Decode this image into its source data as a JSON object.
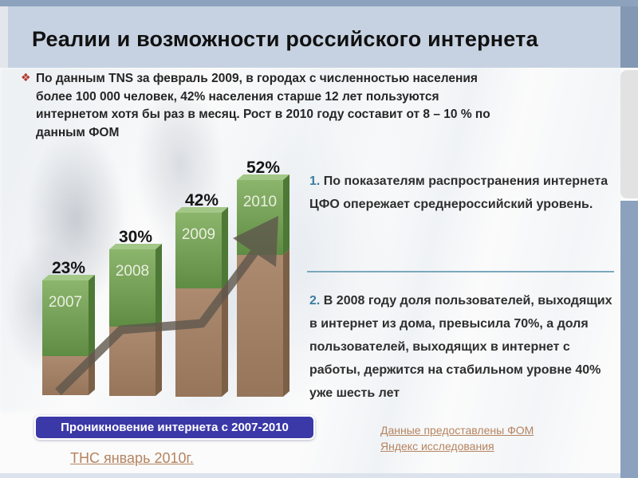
{
  "slide": {
    "title": "Реалии и возможности российского интернета",
    "bullet_icon": "❖",
    "intro": "По данным TNS за февраль 2009, в городах с численностью населения более 100 000 человек, 42% населения старше 12 лет пользуются интернетом хотя бы раз в месяц. Рост в 2010 году составит от 8 – 10 % по данным ФОМ"
  },
  "notes": {
    "note1_num": "1.",
    "note1_text": " По показателям распространения интернета ЦФО опережает среднероссийский уровень.",
    "note2_num": "2.",
    "note2_text": " В 2008 году доля пользователей, выходящих в интернет из дома, превысила 70%, а доля пользователей, выходящих в интернет с работы, держится на стабильном уровне 40% уже шесть лет"
  },
  "caption": "Проникновение интернета с 2007-2010",
  "links": {
    "source1_line1": "Данные предоставлены ФОМ",
    "source1_line2": "Яндекс исследования",
    "source2": "ТНС январь 2010г."
  },
  "chart_data": {
    "type": "bar",
    "categories": [
      "2007",
      "2008",
      "2009",
      "2010"
    ],
    "values": [
      23,
      30,
      42,
      52
    ],
    "value_labels": [
      "23%",
      "30%",
      "42%",
      "52%"
    ],
    "title": "Проникновение интернета с 2007-2010",
    "xlabel": "",
    "ylabel": "",
    "ylim": [
      0,
      60
    ],
    "legend": false,
    "grid": false,
    "annotations": [
      "upward trend arrow"
    ],
    "colors": {
      "segment_top_green": "#76a356",
      "segment_base_brown": "#a7846a",
      "arrow": "#5f574c",
      "value_label": "#151515",
      "category_label": "#e9efe0"
    }
  },
  "theme": {
    "top_strip": "#8ca2bd",
    "header_band": "#c6d2e1",
    "rail_gray": "#e2e2e2",
    "rail_blue": "#8ba1bd",
    "caption_bg": "#3b39a7",
    "link_color": "#b5835f",
    "divider": "#7ba8bd",
    "note_number": "#3c7d9e",
    "bullet_red": "#b2362a"
  }
}
